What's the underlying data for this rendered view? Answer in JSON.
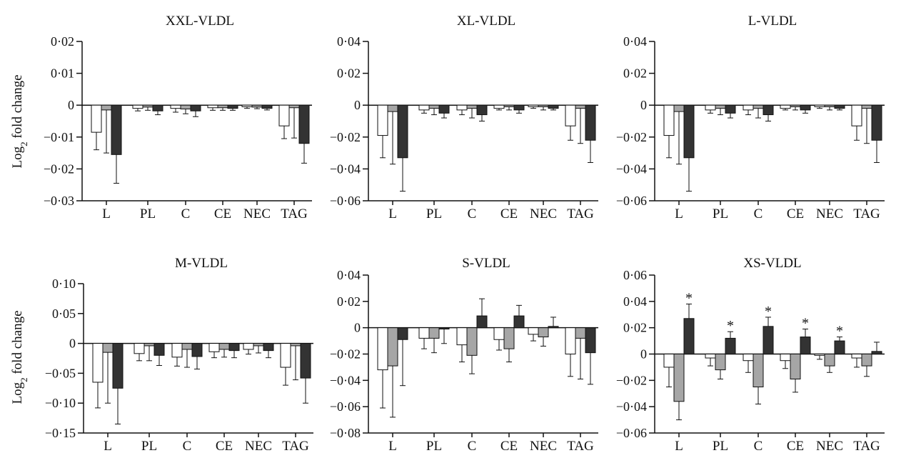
{
  "series_colors": [
    "#ffffff",
    "#a6a6a6",
    "#333333"
  ],
  "figure": {
    "ylabel": "Log",
    "ylabel_sub": "2",
    "ylabel_rest": " fold change"
  },
  "chart_data": [
    {
      "type": "bar",
      "title": "XXL-VLDL",
      "categories": [
        "L",
        "PL",
        "C",
        "CE",
        "NEC",
        "TAG"
      ],
      "ylim": [
        -0.03,
        0.02
      ],
      "yticks": [
        0.02,
        0.01,
        0,
        -0.01,
        -0.02,
        -0.03
      ],
      "ytick_labels": [
        "0·02",
        "0·01",
        "0",
        "−0·01",
        "−0·02",
        "−0·03"
      ],
      "series": [
        {
          "values": [
            -0.0085,
            -0.001,
            -0.001,
            -0.0008,
            -0.0005,
            -0.0065
          ],
          "errors": [
            0.0055,
            0.0008,
            0.0012,
            0.0008,
            0.0005,
            0.004
          ]
        },
        {
          "values": [
            -0.0015,
            -0.0006,
            -0.0012,
            -0.0008,
            -0.0006,
            -0.0008
          ],
          "errors": [
            0.0135,
            0.001,
            0.0015,
            0.0008,
            0.0005,
            0.0095
          ]
        },
        {
          "values": [
            -0.0155,
            -0.0018,
            -0.0018,
            -0.001,
            -0.001,
            -0.012
          ],
          "errors": [
            0.009,
            0.0012,
            0.0018,
            0.0006,
            0.0005,
            0.0062
          ]
        }
      ],
      "stars": [
        false,
        false,
        false,
        false,
        false,
        false
      ]
    },
    {
      "type": "bar",
      "title": "XL-VLDL",
      "categories": [
        "L",
        "PL",
        "C",
        "CE",
        "NEC",
        "TAG"
      ],
      "ylim": [
        -0.06,
        0.04
      ],
      "yticks": [
        0.04,
        0.02,
        0,
        -0.02,
        -0.04,
        -0.06
      ],
      "ytick_labels": [
        "0·04",
        "0·02",
        "0",
        "−0·02",
        "−0·04",
        "−0·06"
      ],
      "series": [
        {
          "values": [
            -0.019,
            -0.003,
            -0.003,
            -0.002,
            -0.001,
            -0.013
          ],
          "errors": [
            0.014,
            0.002,
            0.003,
            0.001,
            0.001,
            0.009
          ]
        },
        {
          "values": [
            -0.004,
            -0.002,
            -0.002,
            -0.001,
            -0.001,
            -0.002
          ],
          "errors": [
            0.033,
            0.004,
            0.006,
            0.002,
            0.002,
            0.022
          ]
        },
        {
          "values": [
            -0.033,
            -0.005,
            -0.006,
            -0.003,
            -0.002,
            -0.022
          ],
          "errors": [
            0.021,
            0.003,
            0.004,
            0.002,
            0.001,
            0.014
          ]
        }
      ],
      "stars": [
        false,
        false,
        false,
        false,
        false,
        false
      ]
    },
    {
      "type": "bar",
      "title": "L-VLDL",
      "categories": [
        "L",
        "PL",
        "C",
        "CE",
        "NEC",
        "TAG"
      ],
      "ylim": [
        -0.06,
        0.04
      ],
      "yticks": [
        0.04,
        0.02,
        0,
        -0.02,
        -0.04,
        -0.06
      ],
      "ytick_labels": [
        "0·04",
        "0·02",
        "0",
        "−0·02",
        "−0·04",
        "−0·06"
      ],
      "series": [
        {
          "values": [
            -0.019,
            -0.003,
            -0.003,
            -0.002,
            -0.001,
            -0.013
          ],
          "errors": [
            0.014,
            0.002,
            0.003,
            0.001,
            0.001,
            0.009
          ]
        },
        {
          "values": [
            -0.004,
            -0.002,
            -0.002,
            -0.001,
            -0.001,
            -0.002
          ],
          "errors": [
            0.033,
            0.004,
            0.006,
            0.002,
            0.002,
            0.022
          ]
        },
        {
          "values": [
            -0.033,
            -0.005,
            -0.006,
            -0.003,
            -0.002,
            -0.022
          ],
          "errors": [
            0.021,
            0.003,
            0.004,
            0.002,
            0.001,
            0.014
          ]
        }
      ],
      "stars": [
        false,
        false,
        false,
        false,
        false,
        false
      ]
    },
    {
      "type": "bar",
      "title": "M-VLDL",
      "categories": [
        "L",
        "PL",
        "C",
        "CE",
        "NEC",
        "TAG"
      ],
      "ylim": [
        -0.15,
        0.1
      ],
      "yticks": [
        0.1,
        0.05,
        0,
        -0.05,
        -0.1,
        -0.15
      ],
      "ytick_labels": [
        "0·10",
        "0·05",
        "0",
        "−0·05",
        "−0·10",
        "−0·15"
      ],
      "series": [
        {
          "values": [
            -0.065,
            -0.017,
            -0.023,
            -0.014,
            -0.01,
            -0.04
          ],
          "errors": [
            0.043,
            0.012,
            0.015,
            0.01,
            0.008,
            0.03
          ]
        },
        {
          "values": [
            -0.015,
            -0.004,
            -0.01,
            -0.01,
            -0.004,
            -0.004
          ],
          "errors": [
            0.085,
            0.025,
            0.03,
            0.013,
            0.012,
            0.057
          ]
        },
        {
          "values": [
            -0.075,
            -0.02,
            -0.022,
            -0.012,
            -0.012,
            -0.058
          ],
          "errors": [
            0.06,
            0.017,
            0.021,
            0.012,
            0.012,
            0.042
          ]
        }
      ],
      "stars": [
        false,
        false,
        false,
        false,
        false,
        false
      ]
    },
    {
      "type": "bar",
      "title": "S-VLDL",
      "categories": [
        "L",
        "PL",
        "C",
        "CE",
        "NEC",
        "TAG"
      ],
      "ylim": [
        -0.08,
        0.04
      ],
      "yticks": [
        0.04,
        0.02,
        0,
        -0.02,
        -0.04,
        -0.06,
        -0.08
      ],
      "ytick_labels": [
        "0·04",
        "0·02",
        "0",
        "−0·02",
        "−0·04",
        "−0·06",
        "−0·08"
      ],
      "series": [
        {
          "values": [
            -0.032,
            -0.008,
            -0.013,
            -0.009,
            -0.005,
            -0.02
          ],
          "errors": [
            0.029,
            0.008,
            0.013,
            0.008,
            0.005,
            0.017
          ]
        },
        {
          "values": [
            -0.029,
            -0.008,
            -0.021,
            -0.016,
            -0.007,
            -0.008
          ],
          "errors": [
            0.039,
            0.011,
            0.014,
            0.01,
            0.007,
            0.031
          ]
        },
        {
          "values": [
            -0.009,
            -0.001,
            0.009,
            0.009,
            0.001,
            -0.019
          ],
          "errors": [
            0.035,
            0.011,
            0.013,
            0.008,
            0.007,
            0.024
          ]
        }
      ],
      "stars": [
        false,
        false,
        false,
        false,
        false,
        false
      ]
    },
    {
      "type": "bar",
      "title": "XS-VLDL",
      "categories": [
        "L",
        "PL",
        "C",
        "CE",
        "NEC",
        "TAG"
      ],
      "ylim": [
        -0.06,
        0.06
      ],
      "yticks": [
        0.06,
        0.04,
        0.02,
        0,
        -0.02,
        -0.04,
        -0.06
      ],
      "ytick_labels": [
        "0·06",
        "0·04",
        "0·02",
        "0",
        "−0·02",
        "−0·04",
        "−0·06"
      ],
      "series": [
        {
          "values": [
            -0.01,
            -0.003,
            -0.005,
            -0.005,
            -0.001,
            -0.003
          ],
          "errors": [
            0.015,
            0.006,
            0.009,
            0.006,
            0.003,
            0.007
          ]
        },
        {
          "values": [
            -0.036,
            -0.012,
            -0.025,
            -0.019,
            -0.009,
            -0.009
          ],
          "errors": [
            0.014,
            0.007,
            0.013,
            0.01,
            0.005,
            0.008
          ]
        },
        {
          "values": [
            0.027,
            0.012,
            0.021,
            0.013,
            0.01,
            0.002
          ],
          "errors": [
            0.011,
            0.005,
            0.007,
            0.006,
            0.003,
            0.007
          ]
        }
      ],
      "stars": [
        true,
        true,
        true,
        true,
        true,
        false
      ]
    }
  ]
}
